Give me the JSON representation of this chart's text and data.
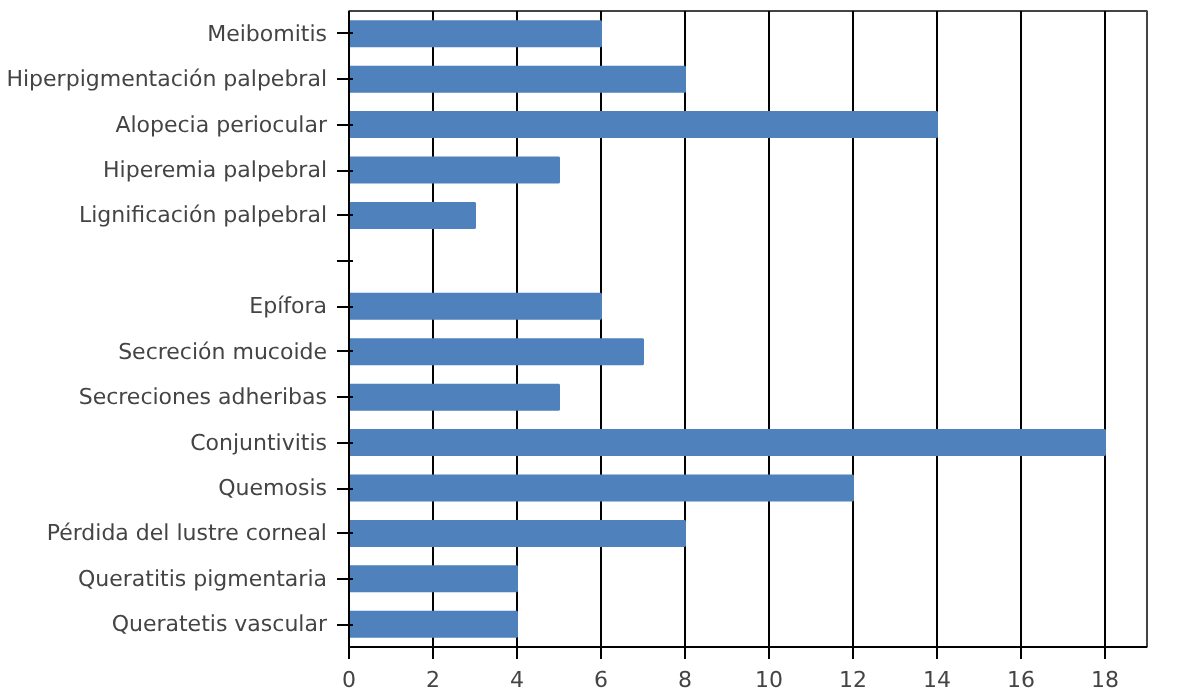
{
  "chart_data": {
    "type": "bar",
    "orientation": "horizontal",
    "categories": [
      "Meibomitis",
      "Hiperpigmentación palpebral",
      "Alopecia periocular",
      "Hiperemia palpebral",
      "Lignificación palpebral",
      null,
      "Epífora",
      "Secreción mucoide",
      "Secreciones adheribas",
      "Conjuntivitis",
      "Quemosis",
      "Pérdida del lustre corneal",
      "Queratitis pigmentaria",
      "Queratetis vascular"
    ],
    "values": [
      6,
      8,
      14,
      5,
      3,
      null,
      6,
      7,
      5,
      18,
      12,
      8,
      4,
      4
    ],
    "color": "#4f81bd",
    "xlim": [
      0,
      19
    ],
    "xticks": [
      0,
      2,
      4,
      6,
      8,
      10,
      12,
      14,
      16,
      18
    ],
    "grid": "x"
  }
}
